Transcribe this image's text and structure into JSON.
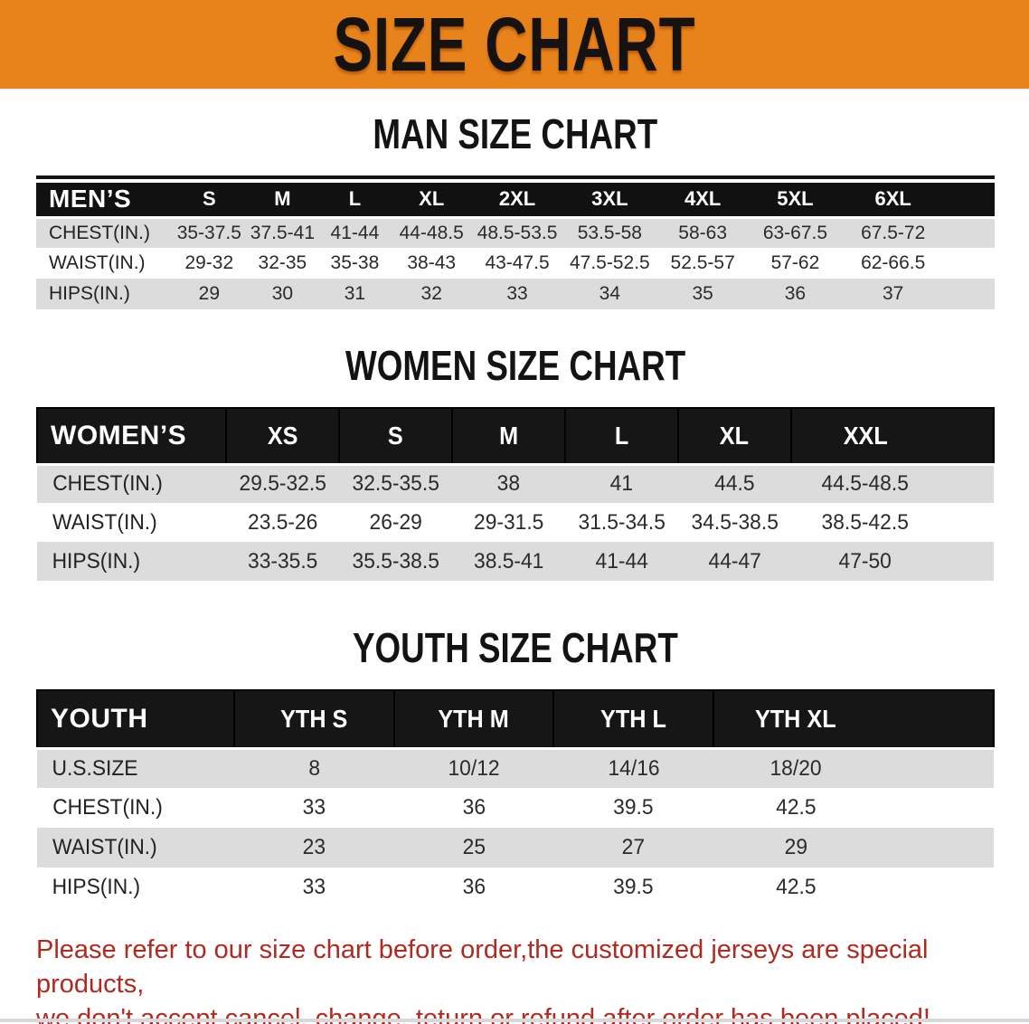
{
  "banner": {
    "title": "SIZE CHART",
    "bg_color": "#E8821B",
    "text_color": "#151210"
  },
  "colors": {
    "header_bar": "#111111",
    "row_shaded": "#DCDCDC",
    "row_plain": "#FFFFFF",
    "disclaimer_red": "#B02A20"
  },
  "sections": [
    {
      "heading": "MAN SIZE CHART",
      "table": {
        "header": [
          "MEN’S",
          "S",
          "M",
          "L",
          "XL",
          "2XL",
          "3XL",
          "4XL",
          "5XL",
          "6XL"
        ],
        "rows": [
          [
            "CHEST(IN.)",
            "35-37.5",
            "37.5-41",
            "41-44",
            "44-48.5",
            "48.5-53.5",
            "53.5-58",
            "58-63",
            "63-67.5",
            "67.5-72"
          ],
          [
            "WAIST(IN.)",
            "29-32",
            "32-35",
            "35-38",
            "38-43",
            "43-47.5",
            "47.5-52.5",
            "52.5-57",
            "57-62",
            "62-66.5"
          ],
          [
            "HIPS(IN.)",
            "29",
            "30",
            "31",
            "32",
            "33",
            "34",
            "35",
            "36",
            "37"
          ]
        ]
      }
    },
    {
      "heading": "WOMEN SIZE CHART",
      "table": {
        "header": [
          "WOMEN’S",
          "XS",
          "S",
          "M",
          "L",
          "XL",
          "XXL"
        ],
        "rows": [
          [
            "CHEST(IN.)",
            "29.5-32.5",
            "32.5-35.5",
            "38",
            "41",
            "44.5",
            "44.5-48.5"
          ],
          [
            "WAIST(IN.)",
            "23.5-26",
            "26-29",
            "29-31.5",
            "31.5-34.5",
            "34.5-38.5",
            "38.5-42.5"
          ],
          [
            "HIPS(IN.)",
            "33-35.5",
            "35.5-38.5",
            "38.5-41",
            "41-44",
            "44-47",
            "47-50"
          ]
        ]
      }
    },
    {
      "heading": "YOUTH SIZE CHART",
      "table": {
        "header": [
          "YOUTH",
          "YTH S",
          "YTH M",
          "YTH L",
          "YTH XL"
        ],
        "rows": [
          [
            "U.S.SIZE",
            "8",
            "10/12",
            "14/16",
            "18/20"
          ],
          [
            "CHEST(IN.)",
            "33",
            "36",
            "39.5",
            "42.5"
          ],
          [
            "WAIST(IN.)",
            "23",
            "25",
            "27",
            "29"
          ],
          [
            "HIPS(IN.)",
            "33",
            "36",
            "39.5",
            "42.5"
          ]
        ]
      }
    }
  ],
  "footer": {
    "line1": "Please refer to our size chart before order,the customized jerseys are special products,",
    "line2": "we don't accept cancel, change, teturn or refund after order has been placed!"
  }
}
